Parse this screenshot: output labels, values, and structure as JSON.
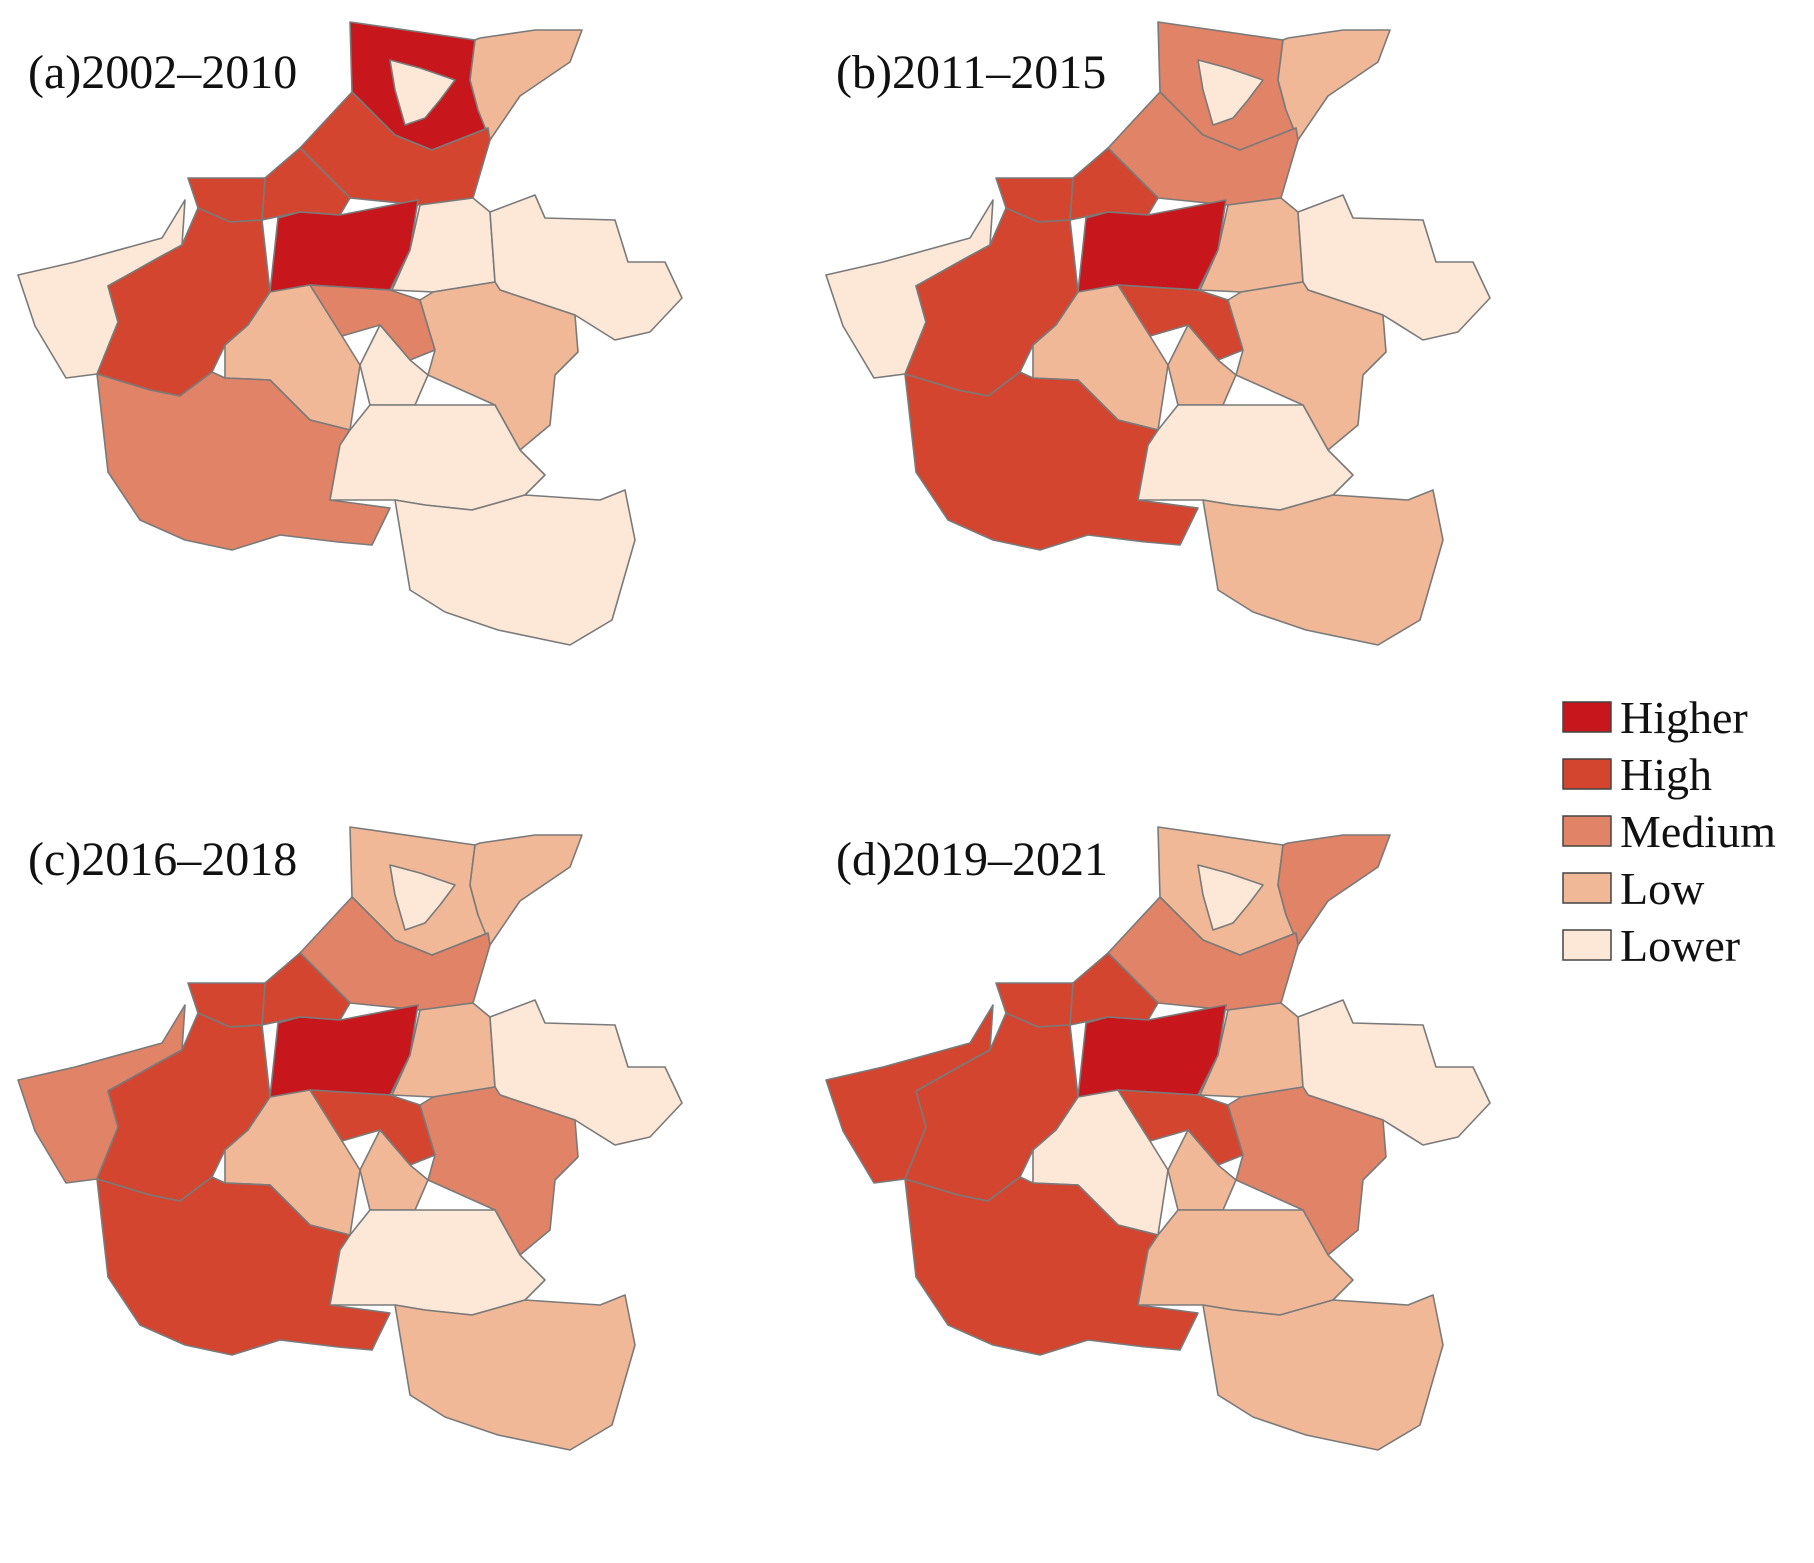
{
  "figure": {
    "panels": [
      {
        "label": "(a)2002–2010",
        "regions": {
          "anyang": "Higher",
          "puyang": "Low",
          "hebi": "Lower",
          "xinxiang": "High",
          "jiaozuo": "High",
          "jiyuan": "High",
          "sanmenxia": "Lower",
          "luoyang": "High",
          "zhengzhou": "Higher",
          "kaifeng": "Lower",
          "shangqiu": "Lower",
          "pingdingshan": "Low",
          "xuchang": "Medium",
          "luohe": "Lower",
          "zhoukou": "Low",
          "nanyang": "Medium",
          "zhumadian": "Lower",
          "xinyang": "Lower"
        }
      },
      {
        "label": "(b)2011–2015",
        "regions": {
          "anyang": "Medium",
          "puyang": "Low",
          "hebi": "Lower",
          "xinxiang": "Medium",
          "jiaozuo": "High",
          "jiyuan": "High",
          "sanmenxia": "Lower",
          "luoyang": "High",
          "zhengzhou": "Higher",
          "kaifeng": "Low",
          "shangqiu": "Lower",
          "pingdingshan": "Low",
          "xuchang": "High",
          "luohe": "Low",
          "zhoukou": "Low",
          "nanyang": "High",
          "zhumadian": "Lower",
          "xinyang": "Low"
        }
      },
      {
        "label": "(c)2016–2018",
        "regions": {
          "anyang": "Low",
          "puyang": "Low",
          "hebi": "Lower",
          "xinxiang": "Medium",
          "jiaozuo": "High",
          "jiyuan": "High",
          "sanmenxia": "Medium",
          "luoyang": "High",
          "zhengzhou": "Higher",
          "kaifeng": "Low",
          "shangqiu": "Lower",
          "pingdingshan": "Low",
          "xuchang": "High",
          "luohe": "Low",
          "zhoukou": "Medium",
          "nanyang": "High",
          "zhumadian": "Lower",
          "xinyang": "Low"
        }
      },
      {
        "label": "(d)2019–2021",
        "regions": {
          "anyang": "Low",
          "puyang": "Medium",
          "hebi": "Lower",
          "xinxiang": "Medium",
          "jiaozuo": "High",
          "jiyuan": "High",
          "sanmenxia": "High",
          "luoyang": "High",
          "zhengzhou": "Higher",
          "kaifeng": "Low",
          "shangqiu": "Lower",
          "pingdingshan": "Lower",
          "xuchang": "High",
          "luohe": "Low",
          "zhoukou": "Medium",
          "nanyang": "High",
          "zhumadian": "Low",
          "xinyang": "Low"
        }
      }
    ],
    "legend": [
      {
        "label": "Higher",
        "color": "#c8161d"
      },
      {
        "label": "High",
        "color": "#d44530"
      },
      {
        "label": "Medium",
        "color": "#e08366"
      },
      {
        "label": "Low",
        "color": "#f0b896"
      },
      {
        "label": "Lower",
        "color": "#fde8d7"
      }
    ]
  }
}
